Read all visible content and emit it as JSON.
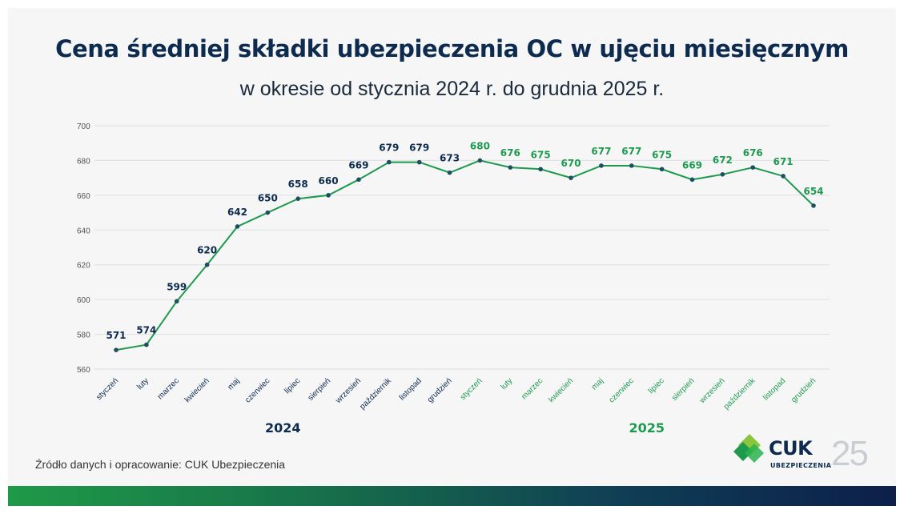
{
  "header": {
    "title": "Cena średniej składki ubezpieczenia OC w ujęciu miesięcznym",
    "subtitle": "w okresie od stycznia 2024 r. do grudnia 2025 r."
  },
  "footer": {
    "source": "Źródło danych i opracowanie: CUK Ubezpieczenia",
    "logo_name": "CUK",
    "logo_sub": "UBEZPIECZENIA",
    "logo_badge": "25"
  },
  "colors": {
    "line": "#1e9a4f",
    "marker": "#1f4e5f",
    "year2024": "#0d2b4e",
    "year2025": "#1e9a4f",
    "grid": "#dcdfe3",
    "tick": "#555555"
  },
  "chart_data": {
    "type": "line",
    "title": "Cena średniej składki ubezpieczenia OC w ujęciu miesięcznym",
    "subtitle": "w okresie od stycznia 2024 r. do grudnia 2025 r.",
    "categories": [
      "styczeń",
      "luty",
      "marzec",
      "kwiecień",
      "maj",
      "czerwiec",
      "lipiec",
      "sierpień",
      "wrzesień",
      "październik",
      "listopad",
      "grudzień",
      "styczeń",
      "luty",
      "marzec",
      "kwiecień",
      "maj",
      "czerwiec",
      "lipiec",
      "sierpień",
      "wrzesień",
      "październik",
      "listopad",
      "grudzień"
    ],
    "groups": [
      {
        "label": "2024",
        "from": 0,
        "to": 11
      },
      {
        "label": "2025",
        "from": 12,
        "to": 23
      }
    ],
    "values": [
      571,
      574,
      599,
      620,
      642,
      650,
      658,
      660,
      669,
      679,
      679,
      673,
      680,
      676,
      675,
      670,
      677,
      677,
      675,
      669,
      672,
      676,
      671,
      654
    ],
    "ylim": [
      560,
      700
    ],
    "yticks": [
      560,
      580,
      600,
      620,
      640,
      660,
      680,
      700
    ],
    "grid": true,
    "data_labels": true
  }
}
